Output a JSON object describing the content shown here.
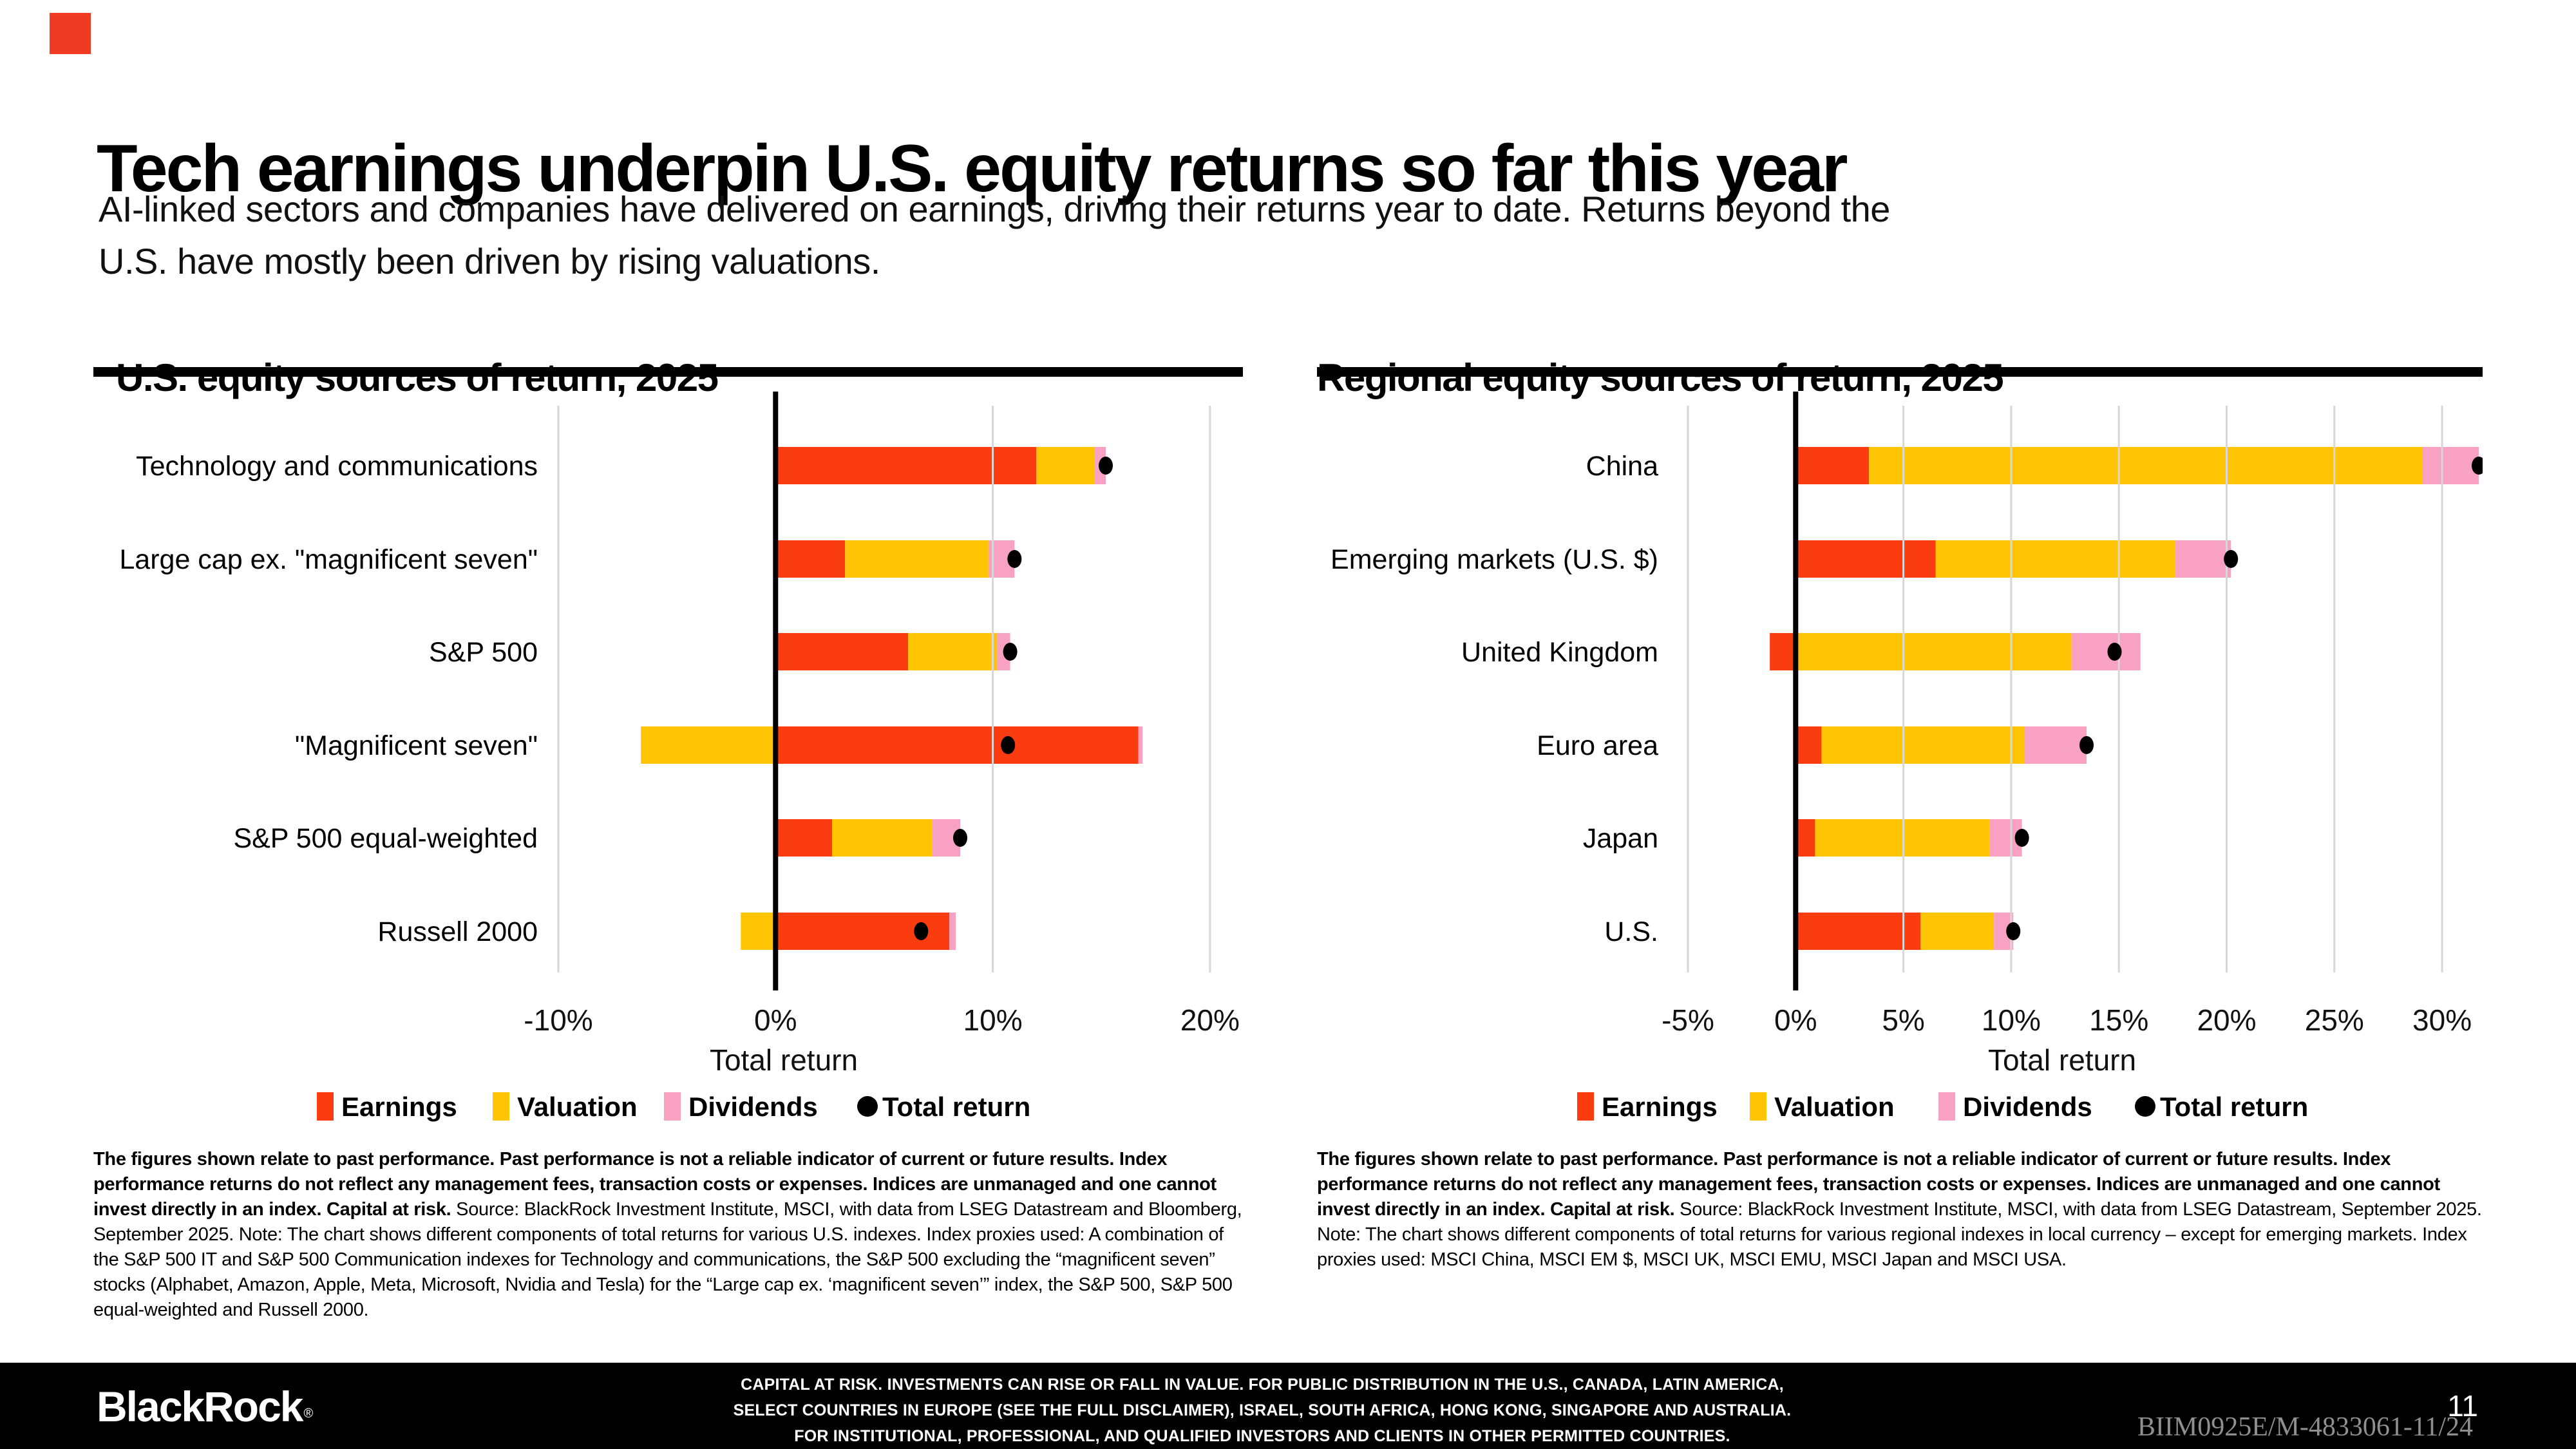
{
  "slide": {
    "title": "Tech earnings underpin U.S. equity returns so far this year",
    "subtitle_lines": [
      "AI-linked sectors and companies have delivered on earnings, driving their returns year to date. Returns beyond the",
      "U.S. have mostly been driven by rising valuations."
    ],
    "accent_color": "#EF3B24"
  },
  "colors": {
    "earnings": "#FB3B10",
    "valuation": "#FFC505",
    "dividends": "#F9A1C3",
    "total_return": "#000000",
    "gridline": "#D7D7D7",
    "zero_line": "#000000"
  },
  "chart_data": [
    {
      "type": "bar",
      "orientation": "horizontal",
      "title": "U.S. equity sources of return, 2025",
      "xlabel": "Total return",
      "xlim": [
        -10,
        20
      ],
      "xtick_values": [
        -10,
        0,
        10,
        20
      ],
      "xtick_labels": [
        "-10%",
        "0%",
        "10%",
        "20%"
      ],
      "grid": true,
      "legend_position": "bottom",
      "categories": [
        "Technology and communications",
        "Large cap ex. \"magnificent seven\"",
        "S&P 500",
        "\"Magnificent seven\"",
        "S&P 500 equal-weighted",
        "Russell 2000"
      ],
      "series": [
        {
          "name": "Earnings",
          "color": "#FB3B10",
          "values": [
            12.0,
            3.2,
            6.1,
            16.7,
            2.6,
            8.0
          ]
        },
        {
          "name": "Valuation",
          "color": "#FFC505",
          "values": [
            2.7,
            6.6,
            4.1,
            -6.2,
            4.6,
            -1.6
          ]
        },
        {
          "name": "Dividends",
          "color": "#F9A1C3",
          "values": [
            0.5,
            1.2,
            0.6,
            0.2,
            1.3,
            0.3
          ]
        }
      ],
      "total_return": {
        "name": "Total return",
        "color": "#000000",
        "values": [
          15.2,
          11.0,
          10.8,
          10.7,
          8.5,
          6.7
        ]
      }
    },
    {
      "type": "bar",
      "orientation": "horizontal",
      "title": "Regional equity sources of return, 2025",
      "xlabel": "Total return",
      "xlim": [
        -5,
        30
      ],
      "xtick_values": [
        -5,
        0,
        5,
        10,
        15,
        20,
        25,
        30
      ],
      "xtick_labels": [
        "-5%",
        "0%",
        "5%",
        "10%",
        "15%",
        "20%",
        "25%",
        "30%"
      ],
      "grid": true,
      "legend_position": "bottom",
      "categories": [
        "China",
        "Emerging markets (U.S. $)",
        "United Kingdom",
        "Euro area",
        "Japan",
        "U.S."
      ],
      "series": [
        {
          "name": "Earnings",
          "color": "#FB3B10",
          "values": [
            3.4,
            6.5,
            -1.2,
            1.2,
            0.9,
            5.8
          ]
        },
        {
          "name": "Valuation",
          "color": "#FFC505",
          "values": [
            25.7,
            11.1,
            12.8,
            9.4,
            8.1,
            3.4
          ]
        },
        {
          "name": "Dividends",
          "color": "#F9A1C3",
          "values": [
            2.6,
            2.6,
            3.2,
            2.9,
            1.5,
            0.9
          ]
        }
      ],
      "total_return": {
        "name": "Total return",
        "color": "#000000",
        "values": [
          31.7,
          20.2,
          14.8,
          13.5,
          10.5,
          10.1
        ]
      }
    }
  ],
  "footnotes": [
    {
      "bold": "The figures shown relate to past performance. Past performance is not a reliable indicator of current or future results. Index performance returns do not reflect any management fees, transaction costs or expenses. Indices are unmanaged and one cannot invest directly in an index. Capital at risk.",
      "rest": " Source: BlackRock Investment Institute, MSCI, with data from LSEG Datastream and Bloomberg, September 2025. Note: The chart shows different components of total returns for various U.S. indexes. Index proxies used: A combination of the S&P 500 IT and S&P 500 Communication indexes for Technology and communications, the S&P 500 excluding the “magnificent seven” stocks (Alphabet, Amazon, Apple, Meta, Microsoft, Nvidia and Tesla) for the “Large cap ex. ‘magnificent seven’” index, the S&P 500, S&P 500 equal-weighted and Russell 2000."
    },
    {
      "bold": "The figures shown relate to past performance. Past performance is not a reliable indicator of current or future results. Index performance returns do not reflect any management fees, transaction costs or expenses. Indices are unmanaged and one cannot invest directly in an index. Capital at risk.",
      "rest": " Source: BlackRock Investment Institute, MSCI, with data from LSEG Datastream, September 2025. Note: The chart shows different components of total returns for various regional indexes in local currency – except for emerging markets. Index proxies used: MSCI China, MSCI EM $, MSCI UK, MSCI EMU, MSCI Japan and MSCI USA."
    }
  ],
  "footer": {
    "logo": "BlackRock",
    "logo_mark": "®",
    "disclaimer_lines": [
      "CAPITAL AT RISK. INVESTMENTS CAN RISE OR FALL IN VALUE. FOR PUBLIC DISTRIBUTION IN THE U.S., CANADA, LATIN AMERICA,",
      "SELECT COUNTRIES IN EUROPE (SEE THE FULL DISCLAIMER), ISRAEL, SOUTH AFRICA, HONG KONG, SINGAPORE AND AUSTRALIA.",
      "FOR INSTITUTIONAL, PROFESSIONAL, AND QUALIFIED INVESTORS AND CLIENTS IN OTHER PERMITTED COUNTRIES."
    ],
    "document_code": "BIIM0925E/M-4833061-11/24",
    "page_number": "11"
  }
}
